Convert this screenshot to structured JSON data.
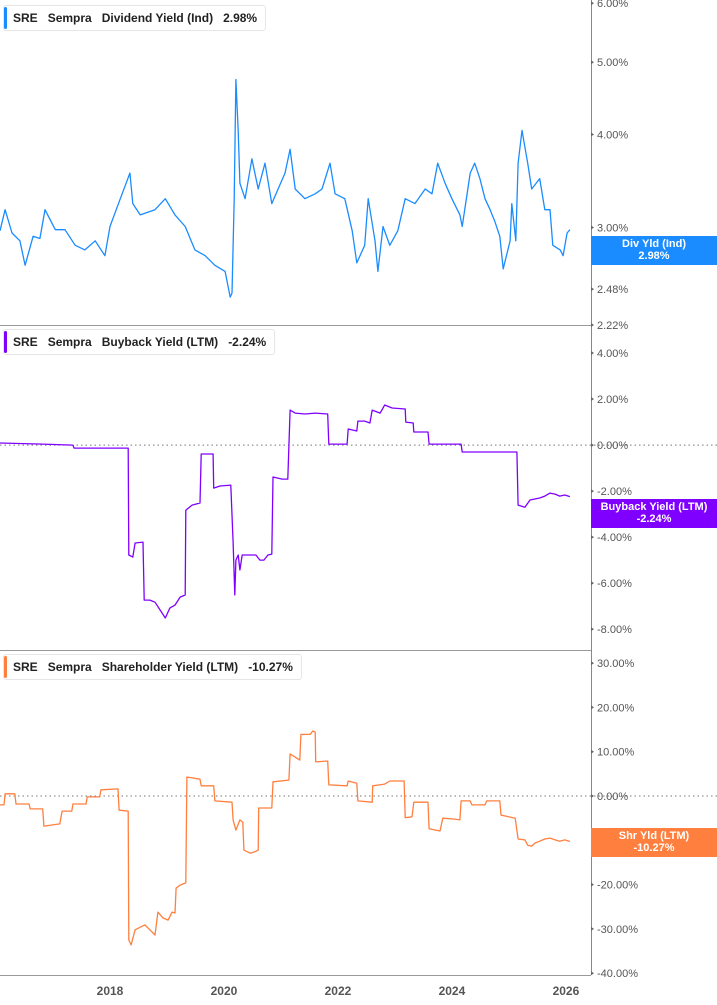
{
  "chart_data": [
    {
      "type": "line",
      "legend": {
        "ticker": "SRE",
        "company": "Sempra",
        "metric": "Dividend Yield (Ind)",
        "value": "2.98%"
      },
      "last_value_tag": {
        "label": "Div Yld (Ind)",
        "value": "2.98%"
      },
      "color": "#1a8cff",
      "y_scale": "log",
      "ylim": [
        2.22,
        6.06
      ],
      "yticks": [
        {
          "v": 6.0,
          "label": "6.00%"
        },
        {
          "v": 5.0,
          "label": "5.00%"
        },
        {
          "v": 4.0,
          "label": "4.00%"
        },
        {
          "v": 3.0,
          "label": "3.00%"
        },
        {
          "v": 2.48,
          "label": "2.48%"
        },
        {
          "v": 2.22,
          "label": "2.22%"
        }
      ],
      "zero_line": false,
      "points": [
        [
          2016.07,
          2.97
        ],
        [
          2016.16,
          3.17
        ],
        [
          2016.28,
          2.95
        ],
        [
          2016.42,
          2.88
        ],
        [
          2016.51,
          2.67
        ],
        [
          2016.65,
          2.92
        ],
        [
          2016.77,
          2.9
        ],
        [
          2016.86,
          3.17
        ],
        [
          2017.04,
          2.98
        ],
        [
          2017.21,
          2.98
        ],
        [
          2017.39,
          2.84
        ],
        [
          2017.56,
          2.8
        ],
        [
          2017.74,
          2.88
        ],
        [
          2017.91,
          2.75
        ],
        [
          2018.0,
          3.01
        ],
        [
          2018.18,
          3.28
        ],
        [
          2018.35,
          3.55
        ],
        [
          2018.4,
          3.23
        ],
        [
          2018.53,
          3.12
        ],
        [
          2018.79,
          3.17
        ],
        [
          2018.97,
          3.28
        ],
        [
          2019.14,
          3.12
        ],
        [
          2019.32,
          3.01
        ],
        [
          2019.49,
          2.8
        ],
        [
          2019.67,
          2.75
        ],
        [
          2019.84,
          2.67
        ],
        [
          2020.02,
          2.62
        ],
        [
          2020.11,
          2.42
        ],
        [
          2020.14,
          2.45
        ],
        [
          2020.18,
          3.28
        ],
        [
          2020.21,
          4.74
        ],
        [
          2020.25,
          4.04
        ],
        [
          2020.28,
          3.44
        ],
        [
          2020.37,
          3.28
        ],
        [
          2020.49,
          3.71
        ],
        [
          2020.6,
          3.38
        ],
        [
          2020.72,
          3.66
        ],
        [
          2020.84,
          3.23
        ],
        [
          2020.95,
          3.38
        ],
        [
          2021.07,
          3.55
        ],
        [
          2021.16,
          3.82
        ],
        [
          2021.25,
          3.38
        ],
        [
          2021.42,
          3.28
        ],
        [
          2021.6,
          3.33
        ],
        [
          2021.72,
          3.38
        ],
        [
          2021.86,
          3.66
        ],
        [
          2021.95,
          3.33
        ],
        [
          2022.12,
          3.28
        ],
        [
          2022.25,
          2.97
        ],
        [
          2022.33,
          2.69
        ],
        [
          2022.47,
          2.84
        ],
        [
          2022.53,
          3.28
        ],
        [
          2022.65,
          2.88
        ],
        [
          2022.7,
          2.62
        ],
        [
          2022.79,
          3.01
        ],
        [
          2022.91,
          2.84
        ],
        [
          2023.05,
          2.97
        ],
        [
          2023.18,
          3.28
        ],
        [
          2023.35,
          3.23
        ],
        [
          2023.53,
          3.38
        ],
        [
          2023.65,
          3.33
        ],
        [
          2023.75,
          3.66
        ],
        [
          2023.88,
          3.44
        ],
        [
          2024.0,
          3.28
        ],
        [
          2024.14,
          3.12
        ],
        [
          2024.18,
          3.01
        ],
        [
          2024.32,
          3.55
        ],
        [
          2024.4,
          3.66
        ],
        [
          2024.49,
          3.49
        ],
        [
          2024.58,
          3.28
        ],
        [
          2024.67,
          3.17
        ],
        [
          2024.75,
          3.06
        ],
        [
          2024.84,
          2.92
        ],
        [
          2024.9,
          2.64
        ],
        [
          2025.02,
          2.88
        ],
        [
          2025.05,
          3.23
        ],
        [
          2025.12,
          2.88
        ],
        [
          2025.16,
          3.66
        ],
        [
          2025.23,
          4.05
        ],
        [
          2025.33,
          3.66
        ],
        [
          2025.4,
          3.38
        ],
        [
          2025.54,
          3.49
        ],
        [
          2025.63,
          3.17
        ],
        [
          2025.72,
          3.17
        ],
        [
          2025.77,
          2.84
        ],
        [
          2025.9,
          2.8
        ],
        [
          2025.95,
          2.75
        ],
        [
          2026.02,
          2.95
        ],
        [
          2026.07,
          2.98
        ]
      ]
    },
    {
      "type": "line",
      "legend": {
        "ticker": "SRE",
        "company": "Sempra",
        "metric": "Buyback Yield (LTM)",
        "value": "-2.24%"
      },
      "last_value_tag": {
        "label": "Buyback Yield (LTM)",
        "value": "-2.24%"
      },
      "color": "#8000ff",
      "y_scale": "linear",
      "ylim": [
        -8.91,
        5.22
      ],
      "yticks": [
        {
          "v": 4,
          "label": "4.00%"
        },
        {
          "v": 2,
          "label": "2.00%"
        },
        {
          "v": 0,
          "label": "0.00%"
        },
        {
          "v": -2,
          "label": "-2.00%"
        },
        {
          "v": -4,
          "label": "-4.00%"
        },
        {
          "v": -6,
          "label": "-6.00%"
        },
        {
          "v": -8,
          "label": "-8.00%"
        }
      ],
      "zero_line": true,
      "points": [
        [
          2016.07,
          0.09
        ],
        [
          2016.82,
          0.04
        ],
        [
          2017.35,
          0
        ],
        [
          2017.37,
          -0.13
        ],
        [
          2018.32,
          -0.13
        ],
        [
          2018.33,
          -4.78
        ],
        [
          2018.4,
          -4.87
        ],
        [
          2018.44,
          -4.26
        ],
        [
          2018.58,
          -4.22
        ],
        [
          2018.6,
          -6.74
        ],
        [
          2018.7,
          -6.74
        ],
        [
          2018.79,
          -6.83
        ],
        [
          2018.88,
          -7.17
        ],
        [
          2018.97,
          -7.52
        ],
        [
          2019.05,
          -7.09
        ],
        [
          2019.14,
          -6.96
        ],
        [
          2019.23,
          -6.61
        ],
        [
          2019.32,
          -6.52
        ],
        [
          2019.33,
          -2.83
        ],
        [
          2019.44,
          -2.61
        ],
        [
          2019.58,
          -2.52
        ],
        [
          2019.6,
          -0.39
        ],
        [
          2019.81,
          -0.39
        ],
        [
          2019.82,
          -1.87
        ],
        [
          2019.93,
          -1.78
        ],
        [
          2020.12,
          -1.74
        ],
        [
          2020.16,
          -4.22
        ],
        [
          2020.19,
          -6.52
        ],
        [
          2020.21,
          -5.0
        ],
        [
          2020.25,
          -4.78
        ],
        [
          2020.28,
          -5.43
        ],
        [
          2020.32,
          -4.78
        ],
        [
          2020.46,
          -4.78
        ],
        [
          2020.56,
          -4.78
        ],
        [
          2020.63,
          -5.0
        ],
        [
          2020.7,
          -5.0
        ],
        [
          2020.77,
          -4.78
        ],
        [
          2020.84,
          -4.74
        ],
        [
          2020.86,
          -1.39
        ],
        [
          2021.02,
          -1.48
        ],
        [
          2021.12,
          -1.48
        ],
        [
          2021.16,
          1.52
        ],
        [
          2021.25,
          1.39
        ],
        [
          2021.42,
          1.35
        ],
        [
          2021.6,
          1.39
        ],
        [
          2021.82,
          1.35
        ],
        [
          2021.84,
          0.04
        ],
        [
          2022.16,
          0.04
        ],
        [
          2022.18,
          0.7
        ],
        [
          2022.33,
          0.61
        ],
        [
          2022.35,
          1.04
        ],
        [
          2022.47,
          1.04
        ],
        [
          2022.56,
          0.96
        ],
        [
          2022.6,
          1.52
        ],
        [
          2022.74,
          1.39
        ],
        [
          2022.82,
          1.74
        ],
        [
          2022.95,
          1.61
        ],
        [
          2023.18,
          1.57
        ],
        [
          2023.19,
          1.0
        ],
        [
          2023.32,
          0.96
        ],
        [
          2023.33,
          0.57
        ],
        [
          2023.58,
          0.57
        ],
        [
          2023.6,
          0.04
        ],
        [
          2024.16,
          0.04
        ],
        [
          2024.18,
          -0.3
        ],
        [
          2025.14,
          -0.3
        ],
        [
          2025.16,
          -2.61
        ],
        [
          2025.28,
          -2.7
        ],
        [
          2025.37,
          -2.39
        ],
        [
          2025.54,
          -2.3
        ],
        [
          2025.63,
          -2.22
        ],
        [
          2025.72,
          -2.09
        ],
        [
          2025.81,
          -2.13
        ],
        [
          2025.89,
          -2.22
        ],
        [
          2025.98,
          -2.17
        ],
        [
          2026.07,
          -2.24
        ]
      ]
    },
    {
      "type": "line",
      "legend": {
        "ticker": "SRE",
        "company": "Sempra",
        "metric": "Shareholder Yield (LTM)",
        "value": "-10.27%"
      },
      "last_value_tag": {
        "label": "Shr Yld (LTM)",
        "value": "-10.27%"
      },
      "color": "#ff7f3f",
      "y_scale": "linear",
      "ylim": [
        -40.4,
        32.96
      ],
      "yticks": [
        {
          "v": 30,
          "label": "30.00%"
        },
        {
          "v": 20,
          "label": "20.00%"
        },
        {
          "v": 10,
          "label": "10.00%"
        },
        {
          "v": 0,
          "label": "0.00%"
        },
        {
          "v": -10,
          "label": "-10.00%"
        },
        {
          "v": -20,
          "label": "-20.00%"
        },
        {
          "v": -30,
          "label": "-30.00%"
        },
        {
          "v": -40,
          "label": "-40.00%"
        }
      ],
      "zero_line": true,
      "points": [
        [
          2016.07,
          -2.0
        ],
        [
          2016.14,
          -2.0
        ],
        [
          2016.16,
          0.5
        ],
        [
          2016.33,
          0.5
        ],
        [
          2016.35,
          -1.8
        ],
        [
          2016.58,
          -1.8
        ],
        [
          2016.6,
          -2.9
        ],
        [
          2016.82,
          -2.9
        ],
        [
          2016.84,
          -6.8
        ],
        [
          2017.12,
          -6.3
        ],
        [
          2017.16,
          -3.4
        ],
        [
          2017.33,
          -3.4
        ],
        [
          2017.35,
          -1.8
        ],
        [
          2017.58,
          -1.8
        ],
        [
          2017.6,
          -0.2
        ],
        [
          2017.82,
          -0.2
        ],
        [
          2017.84,
          1.4
        ],
        [
          2018.14,
          1.6
        ],
        [
          2018.16,
          -3.2
        ],
        [
          2018.32,
          -3.4
        ],
        [
          2018.33,
          -32.5
        ],
        [
          2018.37,
          -33.6
        ],
        [
          2018.44,
          -30.2
        ],
        [
          2018.53,
          -29.6
        ],
        [
          2018.61,
          -29.1
        ],
        [
          2018.7,
          -30.2
        ],
        [
          2018.79,
          -31.4
        ],
        [
          2018.84,
          -26.2
        ],
        [
          2018.93,
          -27.5
        ],
        [
          2019.02,
          -28.0
        ],
        [
          2019.09,
          -26.2
        ],
        [
          2019.14,
          -26.4
        ],
        [
          2019.16,
          -20.8
        ],
        [
          2019.23,
          -20.1
        ],
        [
          2019.33,
          -19.6
        ],
        [
          2019.35,
          4.3
        ],
        [
          2019.58,
          3.8
        ],
        [
          2019.6,
          2.3
        ],
        [
          2019.82,
          2.3
        ],
        [
          2019.84,
          -1.1
        ],
        [
          2020.14,
          -1.4
        ],
        [
          2020.16,
          -5.4
        ],
        [
          2020.21,
          -7.7
        ],
        [
          2020.28,
          -5.4
        ],
        [
          2020.33,
          -5.9
        ],
        [
          2020.35,
          -12.2
        ],
        [
          2020.46,
          -12.9
        ],
        [
          2020.54,
          -12.6
        ],
        [
          2020.6,
          -12.2
        ],
        [
          2020.61,
          -2.7
        ],
        [
          2020.84,
          -2.7
        ],
        [
          2020.86,
          3.2
        ],
        [
          2021.14,
          3.6
        ],
        [
          2021.16,
          9.5
        ],
        [
          2021.33,
          8.1
        ],
        [
          2021.35,
          13.9
        ],
        [
          2021.51,
          13.9
        ],
        [
          2021.56,
          14.7
        ],
        [
          2021.6,
          14.4
        ],
        [
          2021.61,
          7.7
        ],
        [
          2021.82,
          7.9
        ],
        [
          2021.84,
          2.5
        ],
        [
          2022.16,
          2.3
        ],
        [
          2022.18,
          3.4
        ],
        [
          2022.33,
          2.9
        ],
        [
          2022.35,
          -1.1
        ],
        [
          2022.6,
          -1.4
        ],
        [
          2022.61,
          2.3
        ],
        [
          2022.82,
          2.7
        ],
        [
          2022.91,
          3.4
        ],
        [
          2023.16,
          3.4
        ],
        [
          2023.18,
          -4.9
        ],
        [
          2023.3,
          -4.7
        ],
        [
          2023.33,
          -1.4
        ],
        [
          2023.58,
          -1.4
        ],
        [
          2023.6,
          -7.4
        ],
        [
          2023.79,
          -7.9
        ],
        [
          2023.84,
          -5.0
        ],
        [
          2024.05,
          -5.2
        ],
        [
          2024.14,
          -5.4
        ],
        [
          2024.16,
          -1.1
        ],
        [
          2024.32,
          -1.1
        ],
        [
          2024.35,
          -2.0
        ],
        [
          2024.58,
          -2.0
        ],
        [
          2024.61,
          -1.1
        ],
        [
          2024.84,
          -1.1
        ],
        [
          2024.86,
          -4.3
        ],
        [
          2025.11,
          -5.0
        ],
        [
          2025.16,
          -9.7
        ],
        [
          2025.28,
          -9.9
        ],
        [
          2025.33,
          -11.1
        ],
        [
          2025.4,
          -11.3
        ],
        [
          2025.46,
          -10.6
        ],
        [
          2025.54,
          -10.2
        ],
        [
          2025.63,
          -9.7
        ],
        [
          2025.72,
          -9.5
        ],
        [
          2025.81,
          -9.9
        ],
        [
          2025.89,
          -10.2
        ],
        [
          2025.98,
          -9.9
        ],
        [
          2026.07,
          -10.27
        ]
      ]
    }
  ],
  "x_axis": {
    "xlim": [
      2016.07,
      2026.44
    ],
    "ticks": [
      {
        "v": 2018,
        "label": "2018"
      },
      {
        "v": 2020,
        "label": "2020"
      },
      {
        "v": 2022,
        "label": "2022"
      },
      {
        "v": 2024,
        "label": "2024"
      },
      {
        "v": 2026,
        "label": "2026"
      }
    ]
  }
}
